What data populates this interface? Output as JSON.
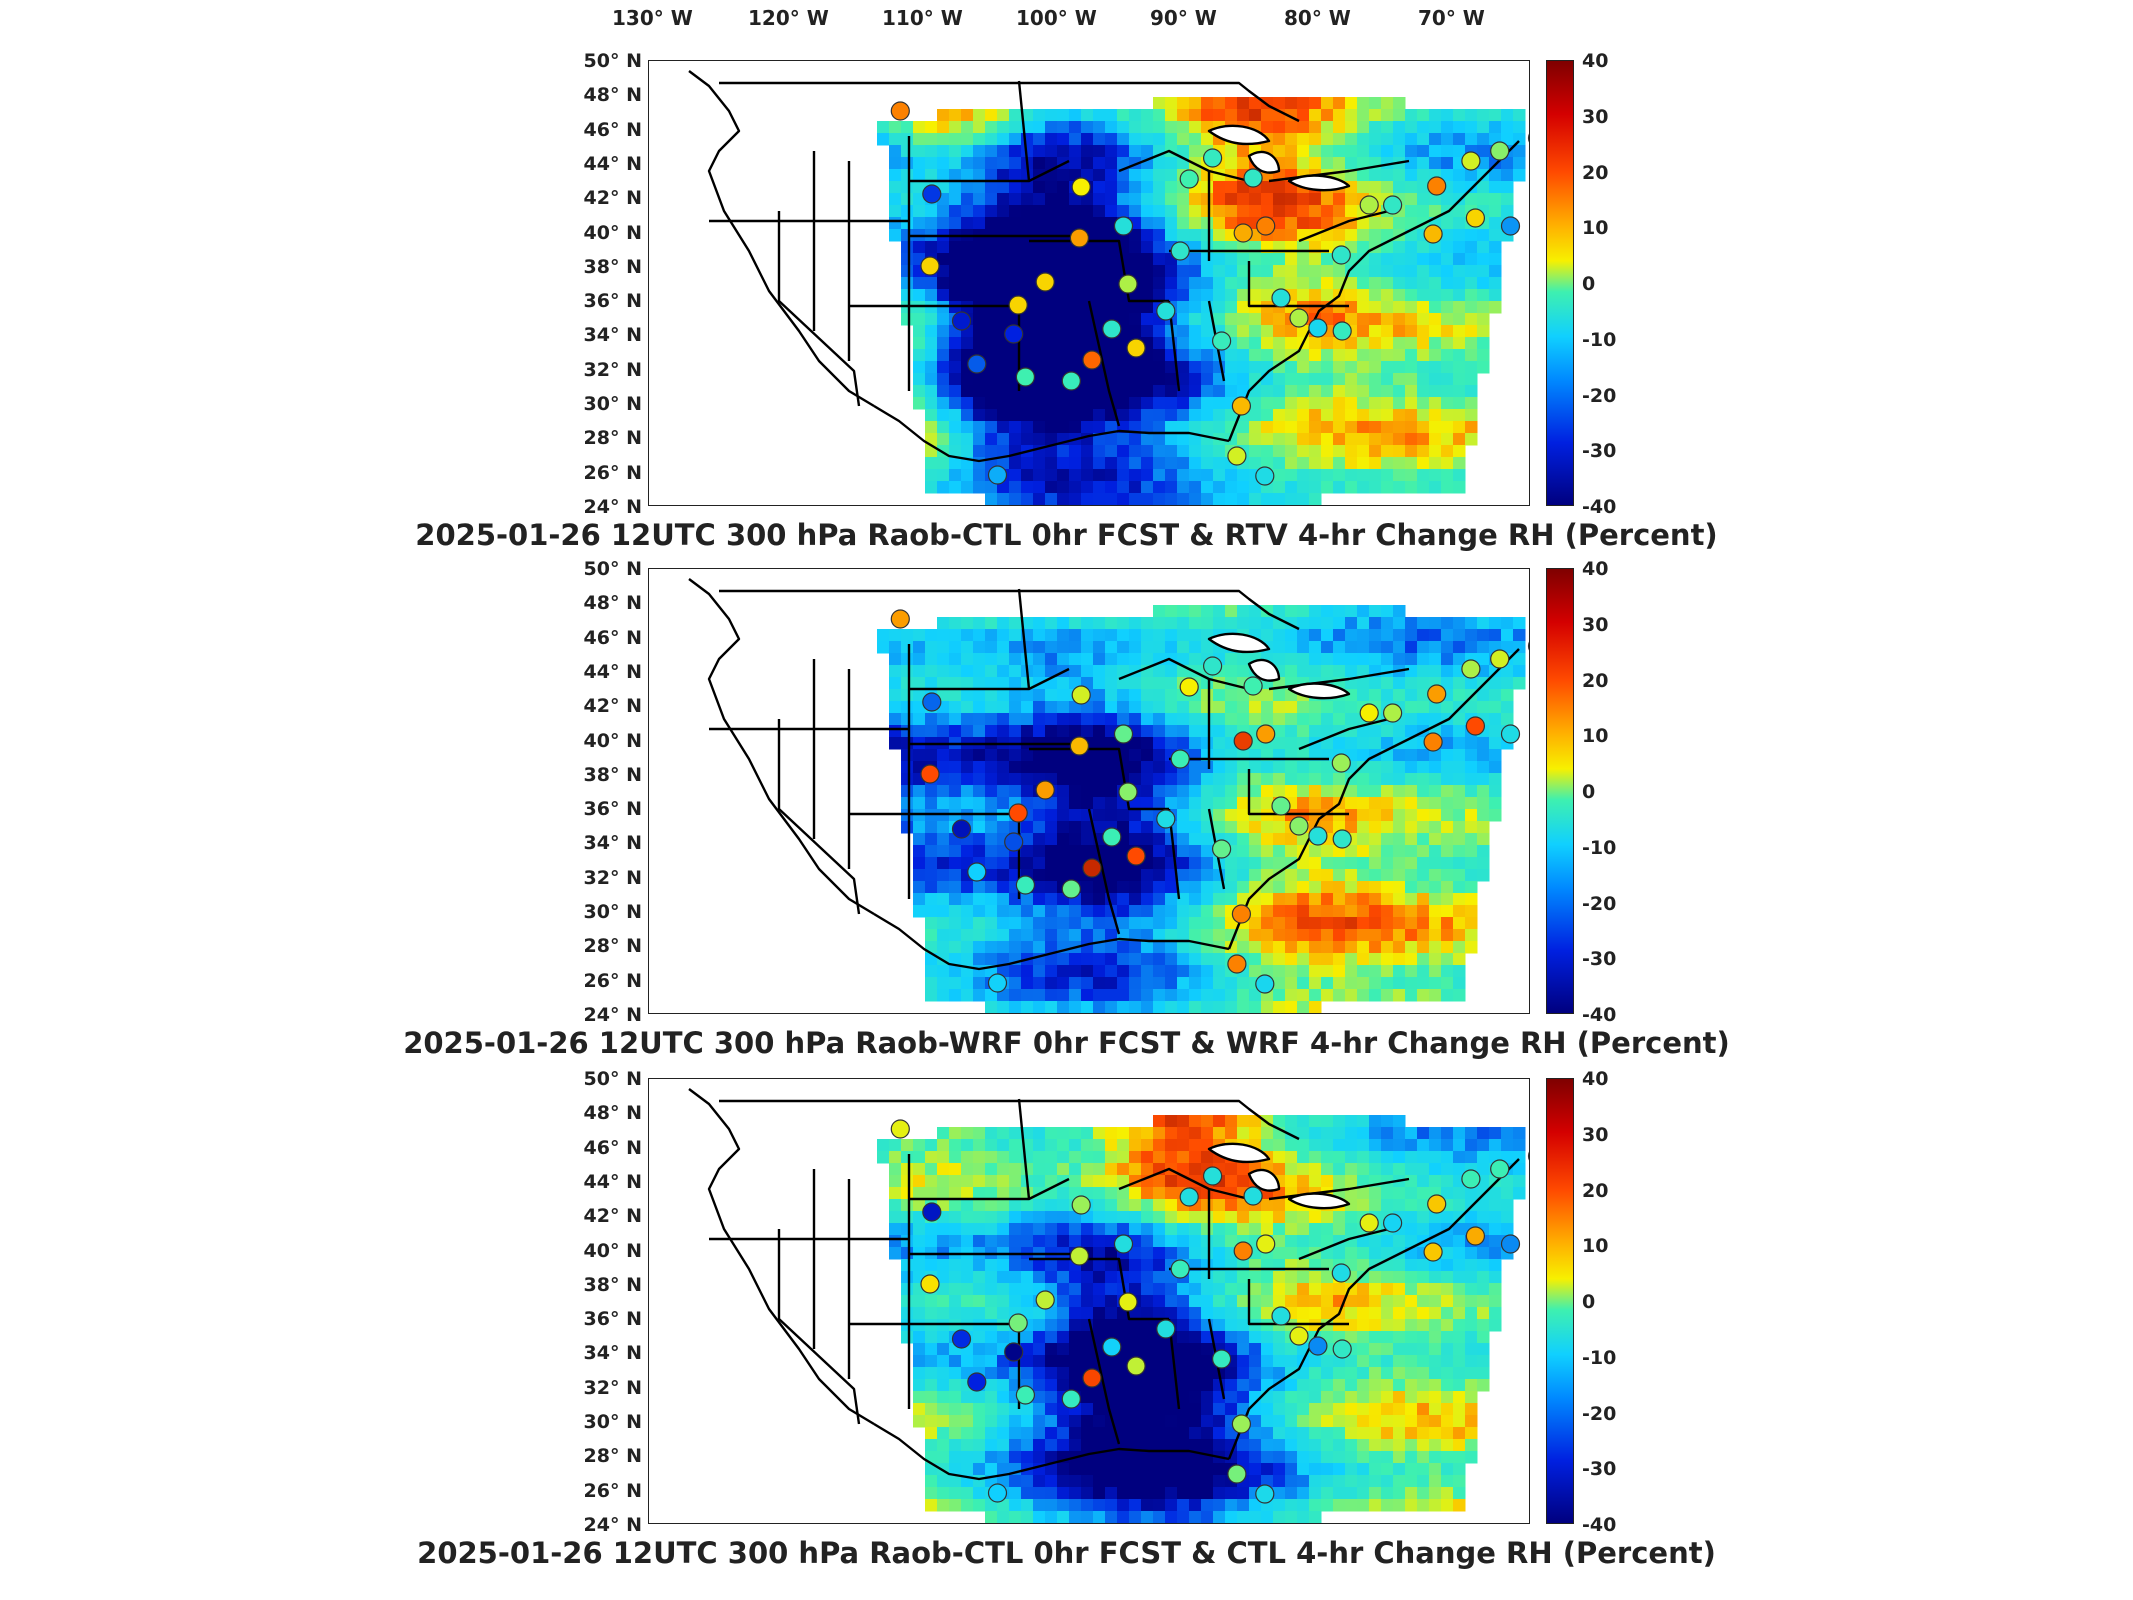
{
  "lon_labels": [
    "130° W",
    "120° W",
    "110° W",
    "100° W",
    "90° W",
    "80° W",
    "70° W"
  ],
  "lat_labels": [
    "50° N",
    "48° N",
    "46° N",
    "44° N",
    "42° N",
    "40° N",
    "38° N",
    "36° N",
    "34° N",
    "32° N",
    "30° N",
    "28° N",
    "26° N",
    "24° N"
  ],
  "colorbar_ticks": [
    "40",
    "30",
    "20",
    "10",
    "0",
    "-10",
    "-20",
    "-30",
    "-40"
  ],
  "colorbar_range": [
    -40,
    40
  ],
  "panels": [
    {
      "caption": "2025-01-26 12UTC 300 hPa Raob-CTL 0hr FCST & RTV 4-hr Change RH (Percent)"
    },
    {
      "caption": "2025-01-26 12UTC 300 hPa Raob-WRF 0hr FCST & WRF 4-hr Change RH (Percent)"
    },
    {
      "caption": "2025-01-26 12UTC 300 hPa Raob-CTL 0hr FCST & CTL 4-hr Change RH (Percent)"
    }
  ],
  "colors": {
    "max": "#7f0000",
    "high": "#ff4a00",
    "mid_high": "#f7f000",
    "zero": "#3ef0b0",
    "mid_low": "#10d0ff",
    "low": "#0020e0",
    "min": "#00007f"
  }
}
